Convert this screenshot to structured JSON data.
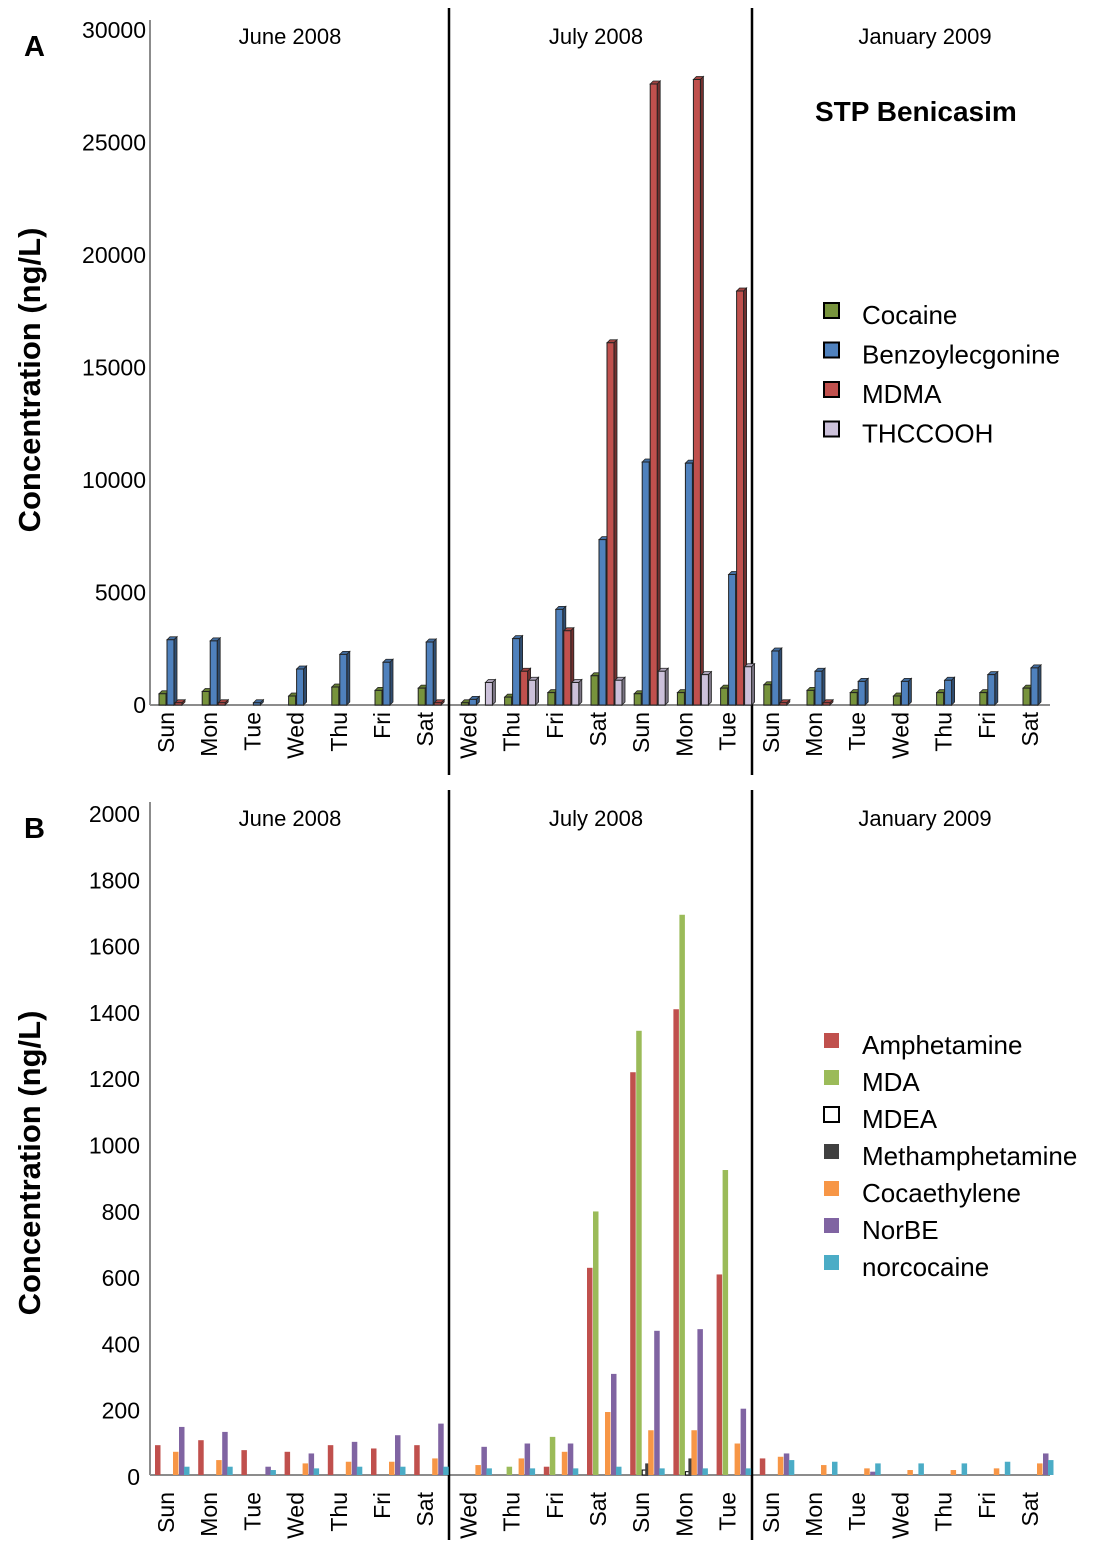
{
  "chart_data": [
    {
      "type": "bar",
      "panel_label": "A",
      "annotation": "STP Benicasim",
      "xlabel": "",
      "ylabel": "Concentration (ng/L)",
      "ylim": [
        0,
        30000
      ],
      "yticks": [
        0,
        5000,
        10000,
        15000,
        20000,
        25000,
        30000
      ],
      "periods": [
        {
          "label": "June 2008",
          "categories": [
            "Sun",
            "Mon",
            "Tue",
            "Wed",
            "Thu",
            "Fri",
            "Sat"
          ]
        },
        {
          "label": "July 2008",
          "categories": [
            "Wed",
            "Thu",
            "Fri",
            "Sat",
            "Sun",
            "Mon",
            "Tue"
          ]
        },
        {
          "label": "January 2009",
          "categories": [
            "Sun",
            "Mon",
            "Tue",
            "Wed",
            "Thu",
            "Fri",
            "Sat"
          ]
        }
      ],
      "legend_position": "right",
      "series": [
        {
          "name": "Cocaine",
          "color": "#77933c",
          "values": [
            500,
            600,
            0,
            400,
            800,
            650,
            750,
            100,
            350,
            550,
            1300,
            500,
            550,
            750,
            900,
            650,
            550,
            400,
            550,
            550,
            750
          ]
        },
        {
          "name": "Benzoylecgonine",
          "color": "#4f81bd",
          "values": [
            2900,
            2850,
            100,
            1600,
            2250,
            1900,
            2800,
            250,
            2950,
            4250,
            7350,
            10800,
            10750,
            5800,
            2400,
            1500,
            1050,
            1050,
            1100,
            1350,
            1650
          ]
        },
        {
          "name": "MDMA",
          "color": "#c0504d",
          "values": [
            100,
            100,
            0,
            0,
            0,
            0,
            100,
            0,
            1500,
            3300,
            16100,
            27600,
            27800,
            18400,
            100,
            100,
            0,
            0,
            0,
            0,
            0
          ]
        },
        {
          "name": "THCCOOH",
          "color": "#ccc1da",
          "values": [
            0,
            0,
            0,
            0,
            0,
            0,
            0,
            1000,
            1100,
            1000,
            1100,
            1500,
            1350,
            1700,
            0,
            0,
            0,
            0,
            0,
            0,
            0
          ]
        }
      ]
    },
    {
      "type": "bar",
      "panel_label": "B",
      "xlabel": "",
      "ylabel": "Concentration (ng/L)",
      "ylim": [
        0,
        2000
      ],
      "yticks": [
        0,
        200,
        400,
        600,
        800,
        1000,
        1200,
        1400,
        1600,
        1800,
        2000
      ],
      "periods": [
        {
          "label": "June 2008",
          "categories": [
            "Sun",
            "Mon",
            "Tue",
            "Wed",
            "Thu",
            "Fri",
            "Sat"
          ]
        },
        {
          "label": "July 2008",
          "categories": [
            "Wed",
            "Thu",
            "Fri",
            "Sat",
            "Sun",
            "Mon",
            "Tue"
          ]
        },
        {
          "label": "January 2009",
          "categories": [
            "Sun",
            "Mon",
            "Tue",
            "Wed",
            "Thu",
            "Fri",
            "Sat"
          ]
        }
      ],
      "legend_position": "right",
      "series": [
        {
          "name": "Amphetamine",
          "color": "#c0504d",
          "values": [
            90,
            105,
            75,
            70,
            90,
            80,
            90,
            0,
            0,
            25,
            625,
            1215,
            1405,
            605,
            50,
            0,
            0,
            0,
            0,
            0,
            0
          ]
        },
        {
          "name": "MDA",
          "color": "#9bbb59",
          "values": [
            0,
            0,
            0,
            0,
            0,
            0,
            0,
            0,
            25,
            115,
            795,
            1340,
            1690,
            920,
            0,
            0,
            0,
            0,
            0,
            0,
            0
          ]
        },
        {
          "name": "MDEA",
          "color": "#ffffff",
          "values": [
            0,
            0,
            0,
            0,
            0,
            0,
            0,
            0,
            0,
            0,
            0,
            15,
            10,
            0,
            0,
            0,
            0,
            0,
            0,
            0,
            0
          ]
        },
        {
          "name": "Methamphetamine",
          "color": "#404040",
          "values": [
            0,
            0,
            0,
            0,
            0,
            0,
            0,
            0,
            0,
            0,
            0,
            35,
            50,
            0,
            0,
            0,
            0,
            0,
            0,
            0,
            0
          ]
        },
        {
          "name": "Cocaethylene",
          "color": "#f79646",
          "values": [
            70,
            45,
            0,
            35,
            40,
            40,
            50,
            30,
            50,
            70,
            190,
            135,
            135,
            95,
            55,
            30,
            20,
            15,
            15,
            20,
            35
          ]
        },
        {
          "name": "NorBE",
          "color": "#8064a2",
          "values": [
            145,
            130,
            25,
            65,
            100,
            120,
            155,
            85,
            95,
            95,
            305,
            435,
            440,
            200,
            65,
            0,
            10,
            0,
            0,
            0,
            65
          ]
        },
        {
          "name": "norcocaine",
          "color": "#4bacc6",
          "values": [
            25,
            25,
            15,
            20,
            25,
            25,
            25,
            20,
            20,
            20,
            25,
            20,
            20,
            20,
            45,
            40,
            35,
            35,
            35,
            40,
            45
          ]
        }
      ]
    }
  ]
}
